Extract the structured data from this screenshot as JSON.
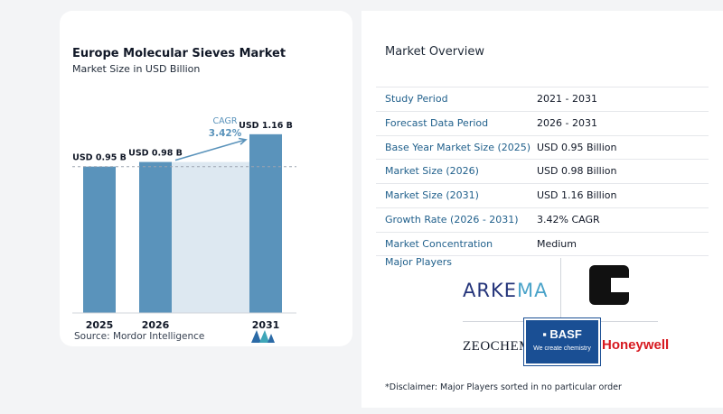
{
  "chart_data": {
    "type": "bar",
    "title": "Europe Molecular Sieves Market",
    "subtitle": "Market Size in USD Billion",
    "categories": [
      "2025",
      "2026",
      "2031"
    ],
    "values": [
      0.95,
      0.98,
      1.16
    ],
    "data_labels": [
      "USD 0.95 B",
      "USD 0.98 B",
      "USD 1.16 B"
    ],
    "ylim": [
      0,
      1.2
    ],
    "cagr_label": "CAGR",
    "cagr_value": "3.42%",
    "bar_color": "#5a93bb",
    "band_color": "#dde8f1",
    "grid": false
  },
  "source": "Source:  Mordor Intelligence",
  "overview": {
    "title": "Market Overview",
    "rows": [
      {
        "label": "Study Period",
        "value": "2021 - 2031"
      },
      {
        "label": "Forecast Data Period",
        "value": "2026 - 2031"
      },
      {
        "label": "Base Year Market Size (2025)",
        "value": "USD 0.95 Billion"
      },
      {
        "label": "Market Size (2026)",
        "value": "USD 0.98 Billion"
      },
      {
        "label": "Market Size (2031)",
        "value": "USD 1.16 Billion"
      },
      {
        "label": "Growth Rate (2026 - 2031)",
        "value": "3.42% CAGR"
      },
      {
        "label": "Market Concentration",
        "value": "Medium"
      }
    ]
  },
  "players": {
    "title": "Major Players",
    "logos": {
      "arkema_prefix": "ARKE",
      "arkema_accent": "MA",
      "zeochem": "ZEOCHEM",
      "basf_name": "▪ BASF",
      "basf_tagline": "We create chemistry",
      "honeywell": "Honeywell"
    }
  },
  "disclaimer": "*Disclaimer: Major Players sorted in no particular order"
}
